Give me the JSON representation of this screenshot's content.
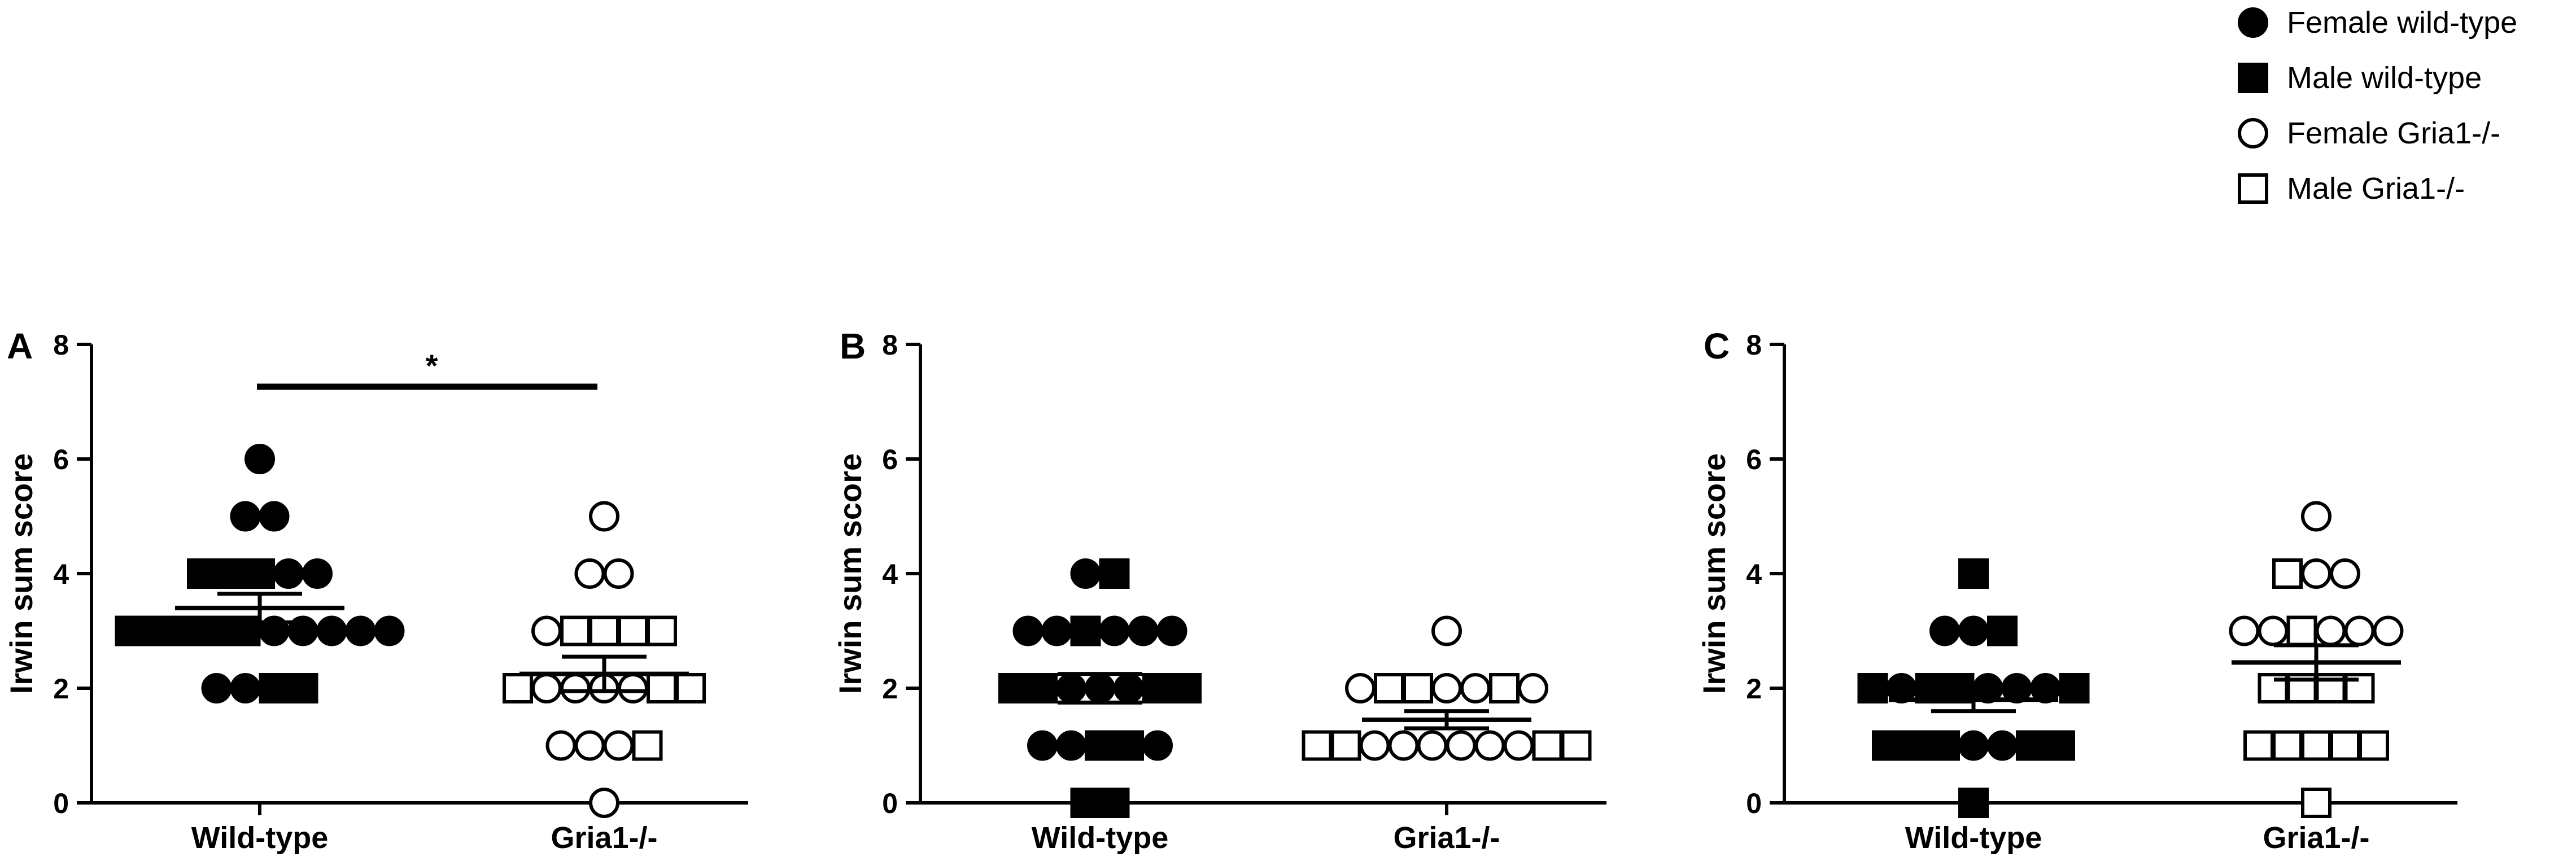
{
  "legend": {
    "items": [
      {
        "label": "Female wild-type",
        "marker": "circle",
        "filled": true
      },
      {
        "label": "Male wild-type",
        "marker": "square",
        "filled": true
      },
      {
        "label": "Female Gria1-/-",
        "marker": "circle",
        "filled": false
      },
      {
        "label": "Male Gria1-/-",
        "marker": "square",
        "filled": false
      }
    ]
  },
  "chart_data": [
    {
      "type": "scatter",
      "panel": "A",
      "ylabel": "Irwin sum score",
      "ylim": [
        0,
        8
      ],
      "yticks": [
        "0",
        "2",
        "4",
        "6",
        "8"
      ],
      "categories": [
        "Wild-type",
        "Gria1-/-"
      ],
      "significance": {
        "label": "*",
        "between": [
          "Wild-type",
          "Gria1-/-"
        ]
      },
      "groups": [
        {
          "category": "Wild-type",
          "mean": 3.4,
          "sem": 0.25,
          "points": [
            {
              "sex": "female",
              "y": 6
            },
            {
              "sex": "female",
              "y": 5
            },
            {
              "sex": "female",
              "y": 5
            },
            {
              "sex": "male",
              "y": 4
            },
            {
              "sex": "male",
              "y": 4
            },
            {
              "sex": "male",
              "y": 4
            },
            {
              "sex": "female",
              "y": 4
            },
            {
              "sex": "female",
              "y": 4
            },
            {
              "sex": "male",
              "y": 3
            },
            {
              "sex": "male",
              "y": 3
            },
            {
              "sex": "male",
              "y": 3
            },
            {
              "sex": "male",
              "y": 3
            },
            {
              "sex": "male",
              "y": 3
            },
            {
              "sex": "female",
              "y": 3
            },
            {
              "sex": "female",
              "y": 3
            },
            {
              "sex": "female",
              "y": 3
            },
            {
              "sex": "female",
              "y": 3
            },
            {
              "sex": "female",
              "y": 3
            },
            {
              "sex": "female",
              "y": 2
            },
            {
              "sex": "female",
              "y": 2
            },
            {
              "sex": "male",
              "y": 2
            },
            {
              "sex": "male",
              "y": 2
            }
          ]
        },
        {
          "category": "Gria1-/-",
          "mean": 2.25,
          "sem": 0.3,
          "points": [
            {
              "sex": "female",
              "y": 5
            },
            {
              "sex": "female",
              "y": 4
            },
            {
              "sex": "female",
              "y": 4
            },
            {
              "sex": "female",
              "y": 3
            },
            {
              "sex": "male",
              "y": 3
            },
            {
              "sex": "male",
              "y": 3
            },
            {
              "sex": "male",
              "y": 3
            },
            {
              "sex": "male",
              "y": 3
            },
            {
              "sex": "male",
              "y": 2
            },
            {
              "sex": "female",
              "y": 2
            },
            {
              "sex": "female",
              "y": 2
            },
            {
              "sex": "female",
              "y": 2
            },
            {
              "sex": "female",
              "y": 2
            },
            {
              "sex": "male",
              "y": 2
            },
            {
              "sex": "male",
              "y": 2
            },
            {
              "sex": "female",
              "y": 1
            },
            {
              "sex": "female",
              "y": 1
            },
            {
              "sex": "female",
              "y": 1
            },
            {
              "sex": "male",
              "y": 1
            },
            {
              "sex": "female",
              "y": 0
            }
          ]
        }
      ]
    },
    {
      "type": "scatter",
      "panel": "B",
      "ylabel": "Irwin sum score",
      "ylim": [
        0,
        8
      ],
      "yticks": [
        "0",
        "2",
        "4",
        "6",
        "8"
      ],
      "categories": [
        "Wild-type",
        "Gria1-/-"
      ],
      "groups": [
        {
          "category": "Wild-type",
          "mean": 2.0,
          "sem": 0.25,
          "points": [
            {
              "sex": "female",
              "y": 4
            },
            {
              "sex": "male",
              "y": 4
            },
            {
              "sex": "female",
              "y": 3
            },
            {
              "sex": "female",
              "y": 3
            },
            {
              "sex": "male",
              "y": 3
            },
            {
              "sex": "female",
              "y": 3
            },
            {
              "sex": "female",
              "y": 3
            },
            {
              "sex": "female",
              "y": 3
            },
            {
              "sex": "male",
              "y": 2
            },
            {
              "sex": "male",
              "y": 2
            },
            {
              "sex": "female",
              "y": 2
            },
            {
              "sex": "female",
              "y": 2
            },
            {
              "sex": "female",
              "y": 2
            },
            {
              "sex": "male",
              "y": 2
            },
            {
              "sex": "male",
              "y": 2
            },
            {
              "sex": "female",
              "y": 1
            },
            {
              "sex": "female",
              "y": 1
            },
            {
              "sex": "male",
              "y": 1
            },
            {
              "sex": "male",
              "y": 1
            },
            {
              "sex": "female",
              "y": 1
            },
            {
              "sex": "male",
              "y": 0
            },
            {
              "sex": "male",
              "y": 0
            }
          ]
        },
        {
          "category": "Gria1-/-",
          "mean": 1.45,
          "sem": 0.15,
          "points": [
            {
              "sex": "female",
              "y": 3
            },
            {
              "sex": "female",
              "y": 2
            },
            {
              "sex": "male",
              "y": 2
            },
            {
              "sex": "male",
              "y": 2
            },
            {
              "sex": "female",
              "y": 2
            },
            {
              "sex": "female",
              "y": 2
            },
            {
              "sex": "male",
              "y": 2
            },
            {
              "sex": "female",
              "y": 2
            },
            {
              "sex": "male",
              "y": 1
            },
            {
              "sex": "male",
              "y": 1
            },
            {
              "sex": "female",
              "y": 1
            },
            {
              "sex": "female",
              "y": 1
            },
            {
              "sex": "female",
              "y": 1
            },
            {
              "sex": "female",
              "y": 1
            },
            {
              "sex": "female",
              "y": 1
            },
            {
              "sex": "female",
              "y": 1
            },
            {
              "sex": "male",
              "y": 1
            },
            {
              "sex": "male",
              "y": 1
            }
          ]
        }
      ]
    },
    {
      "type": "scatter",
      "panel": "C",
      "ylabel": "Irwin sum score",
      "ylim": [
        0,
        8
      ],
      "yticks": [
        "0",
        "2",
        "4",
        "6",
        "8"
      ],
      "categories": [
        "Wild-type",
        "Gria1-/-"
      ],
      "groups": [
        {
          "category": "Wild-type",
          "mean": 1.8,
          "sem": 0.2,
          "points": [
            {
              "sex": "male",
              "y": 4
            },
            {
              "sex": "female",
              "y": 3
            },
            {
              "sex": "female",
              "y": 3
            },
            {
              "sex": "male",
              "y": 3
            },
            {
              "sex": "male",
              "y": 2
            },
            {
              "sex": "female",
              "y": 2
            },
            {
              "sex": "male",
              "y": 2
            },
            {
              "sex": "male",
              "y": 2
            },
            {
              "sex": "female",
              "y": 2
            },
            {
              "sex": "female",
              "y": 2
            },
            {
              "sex": "female",
              "y": 2
            },
            {
              "sex": "male",
              "y": 2
            },
            {
              "sex": "male",
              "y": 1
            },
            {
              "sex": "male",
              "y": 1
            },
            {
              "sex": "male",
              "y": 1
            },
            {
              "sex": "female",
              "y": 1
            },
            {
              "sex": "female",
              "y": 1
            },
            {
              "sex": "male",
              "y": 1
            },
            {
              "sex": "male",
              "y": 1
            },
            {
              "sex": "male",
              "y": 0
            }
          ]
        },
        {
          "category": "Gria1-/-",
          "mean": 2.45,
          "sem": 0.3,
          "points": [
            {
              "sex": "female",
              "y": 5
            },
            {
              "sex": "male",
              "y": 4
            },
            {
              "sex": "female",
              "y": 4
            },
            {
              "sex": "female",
              "y": 4
            },
            {
              "sex": "female",
              "y": 3
            },
            {
              "sex": "female",
              "y": 3
            },
            {
              "sex": "male",
              "y": 3
            },
            {
              "sex": "female",
              "y": 3
            },
            {
              "sex": "female",
              "y": 3
            },
            {
              "sex": "female",
              "y": 3
            },
            {
              "sex": "male",
              "y": 2
            },
            {
              "sex": "male",
              "y": 2
            },
            {
              "sex": "male",
              "y": 2
            },
            {
              "sex": "male",
              "y": 2
            },
            {
              "sex": "male",
              "y": 1
            },
            {
              "sex": "male",
              "y": 1
            },
            {
              "sex": "male",
              "y": 1
            },
            {
              "sex": "male",
              "y": 1
            },
            {
              "sex": "male",
              "y": 1
            },
            {
              "sex": "male",
              "y": 0
            }
          ]
        }
      ]
    }
  ]
}
